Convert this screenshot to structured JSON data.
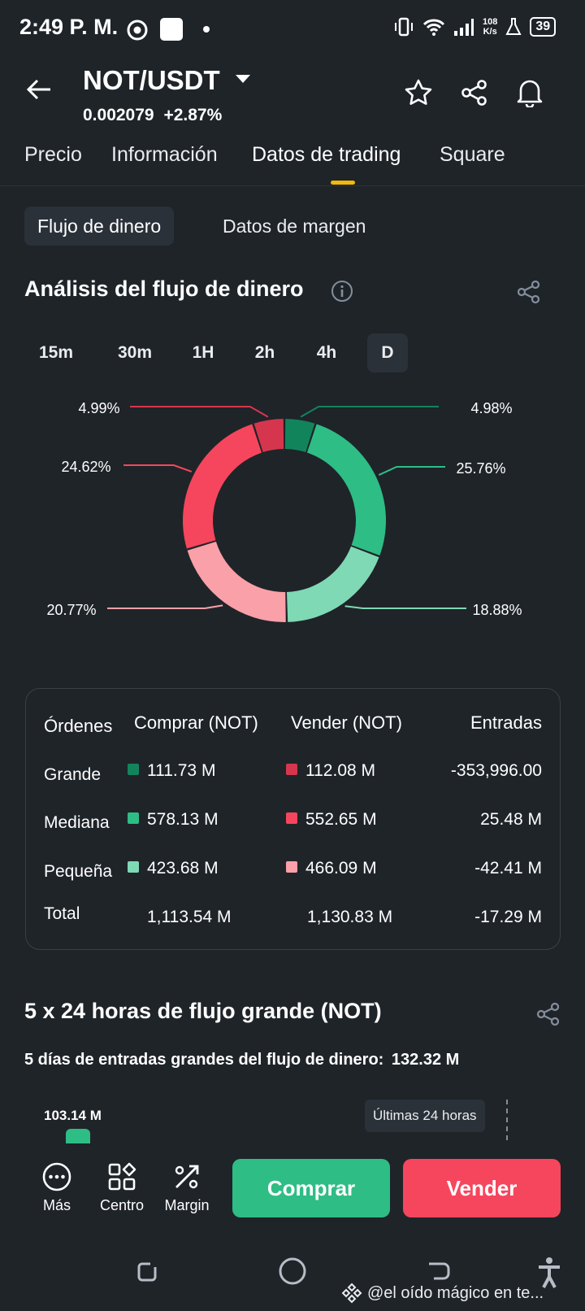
{
  "status_bar": {
    "time": "2:49 P. M.",
    "net_speed_value": "108",
    "net_speed_unit": "K/s",
    "battery": "39"
  },
  "header": {
    "pair": "NOT/USDT",
    "price": "0.002079",
    "change": "+2.87%"
  },
  "tabs": [
    {
      "label": "Precio"
    },
    {
      "label": "Información"
    },
    {
      "label": "Datos de trading"
    },
    {
      "label": "Square"
    }
  ],
  "active_tab": "Datos de trading",
  "sub_tabs": [
    {
      "label": "Flujo de dinero"
    },
    {
      "label": "Datos de margen"
    }
  ],
  "money_flow": {
    "title": "Análisis del flujo de dinero",
    "periods": [
      "15m",
      "30m",
      "1H",
      "2h",
      "4h",
      "D"
    ],
    "active_period": "D"
  },
  "chart_data": {
    "type": "pie",
    "slices": [
      {
        "label": "4.98%",
        "value": 4.98,
        "color": "#12845c"
      },
      {
        "label": "25.76%",
        "value": 25.76,
        "color": "#2ebd85"
      },
      {
        "label": "18.88%",
        "value": 18.88,
        "color": "#7fd9b4"
      },
      {
        "label": "20.77%",
        "value": 20.77,
        "color": "#f9a0a8"
      },
      {
        "label": "24.62%",
        "value": 24.62,
        "color": "#f6465d"
      },
      {
        "label": "4.99%",
        "value": 4.99,
        "color": "#d6364d"
      }
    ]
  },
  "orders_table": {
    "headers": [
      "Órdenes",
      "Comprar (NOT)",
      "Vender (NOT)",
      "Entradas"
    ],
    "rows": [
      {
        "label": "Grande",
        "buy": "111.73 M",
        "sell": "112.08 M",
        "inflow": "-353,996.00",
        "buy_color": "#12845c",
        "sell_color": "#d6364d"
      },
      {
        "label": "Mediana",
        "buy": "578.13 M",
        "sell": "552.65 M",
        "inflow": "25.48 M",
        "buy_color": "#2ebd85",
        "sell_color": "#f6465d"
      },
      {
        "label": "Pequeña",
        "buy": "423.68 M",
        "sell": "466.09 M",
        "inflow": "-42.41 M",
        "buy_color": "#7fd9b4",
        "sell_color": "#f9a0a8"
      }
    ],
    "total": {
      "label": "Total",
      "buy": "1,113.54 M",
      "sell": "1,130.83 M",
      "inflow": "-17.29 M"
    }
  },
  "large_flow": {
    "title": "5 x 24 horas de flujo grande (NOT)",
    "subtitle": "5 días de entradas grandes del flujo de dinero:",
    "subtitle_value": "132.32 M",
    "bar_label": "103.14 M",
    "tooltip": "Últimas 24 horas"
  },
  "bottom_nav": [
    {
      "label": "Más"
    },
    {
      "label": "Centro"
    },
    {
      "label": "Margin"
    }
  ],
  "buy_button": "Comprar",
  "sell_button": "Vender",
  "watermark": "@el oído mágico en te..."
}
